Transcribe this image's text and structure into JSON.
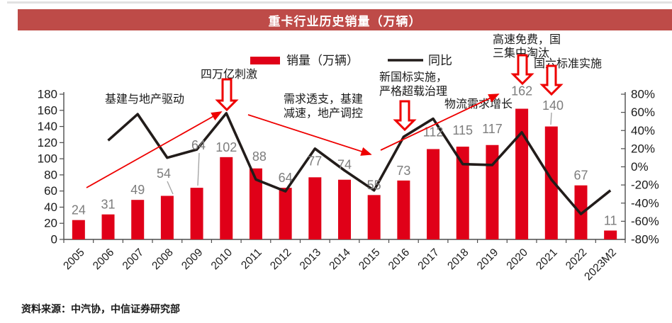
{
  "title_banner": "重卡行业历史销量（万辆）",
  "source_note": "资料来源：中汽协，中信证券研究部",
  "colors": {
    "banner_bg": "#BE4B48",
    "bar": "#E00018",
    "line": "#221C1A",
    "arrow": "#EE0000",
    "gray_label": "#7D7D7D"
  },
  "legend": {
    "sales_label": "销量（万辆）",
    "yoy_label": "同比"
  },
  "annotations": {
    "infra": "基建与地产驱动",
    "stimulus": "四万亿刺激",
    "overdraft_line1": "需求透支，基建",
    "overdraft_line2": "减速，地产调控",
    "newstd_line1": "新国标实施，",
    "newstd_line2": "严格超载治理",
    "logistics": "物流需求增长",
    "highway_line1": "高速免费，国",
    "highway_line2": "三集中淘汰",
    "china6": "国六标准实施"
  },
  "chart_data": {
    "type": "bar",
    "title": "重卡行业历史销量（万辆）",
    "categories": [
      "2005",
      "2006",
      "2007",
      "2008",
      "2009",
      "2010",
      "2011",
      "2012",
      "2013",
      "2014",
      "2015",
      "2016",
      "2017",
      "2018",
      "2019",
      "2020",
      "2021",
      "2022",
      "2023M2"
    ],
    "series": [
      {
        "name": "销量（万辆）",
        "type": "bar",
        "axis": "left",
        "values": [
          24,
          31,
          49,
          54,
          64,
          102,
          88,
          64,
          77,
          74,
          55,
          73,
          112,
          115,
          117,
          162,
          140,
          67,
          11
        ]
      },
      {
        "name": "同比",
        "type": "line",
        "axis": "right",
        "values_pct": [
          null,
          29,
          58,
          10,
          19,
          59,
          -14,
          -27,
          20,
          -4,
          -26,
          33,
          53,
          3,
          2,
          38,
          -14,
          -52,
          -26
        ]
      }
    ],
    "left_axis": {
      "ticks": [
        180,
        160,
        140,
        120,
        100,
        80,
        60,
        40,
        20,
        0
      ],
      "range": [
        0,
        180
      ]
    },
    "right_axis": {
      "ticks": [
        "80%",
        "60%",
        "40%",
        "20%",
        "0%",
        "-20%",
        "-40%",
        "-60%",
        "-80%"
      ],
      "range": [
        -80,
        80
      ]
    },
    "grid": false,
    "legend_position": "top-center"
  }
}
